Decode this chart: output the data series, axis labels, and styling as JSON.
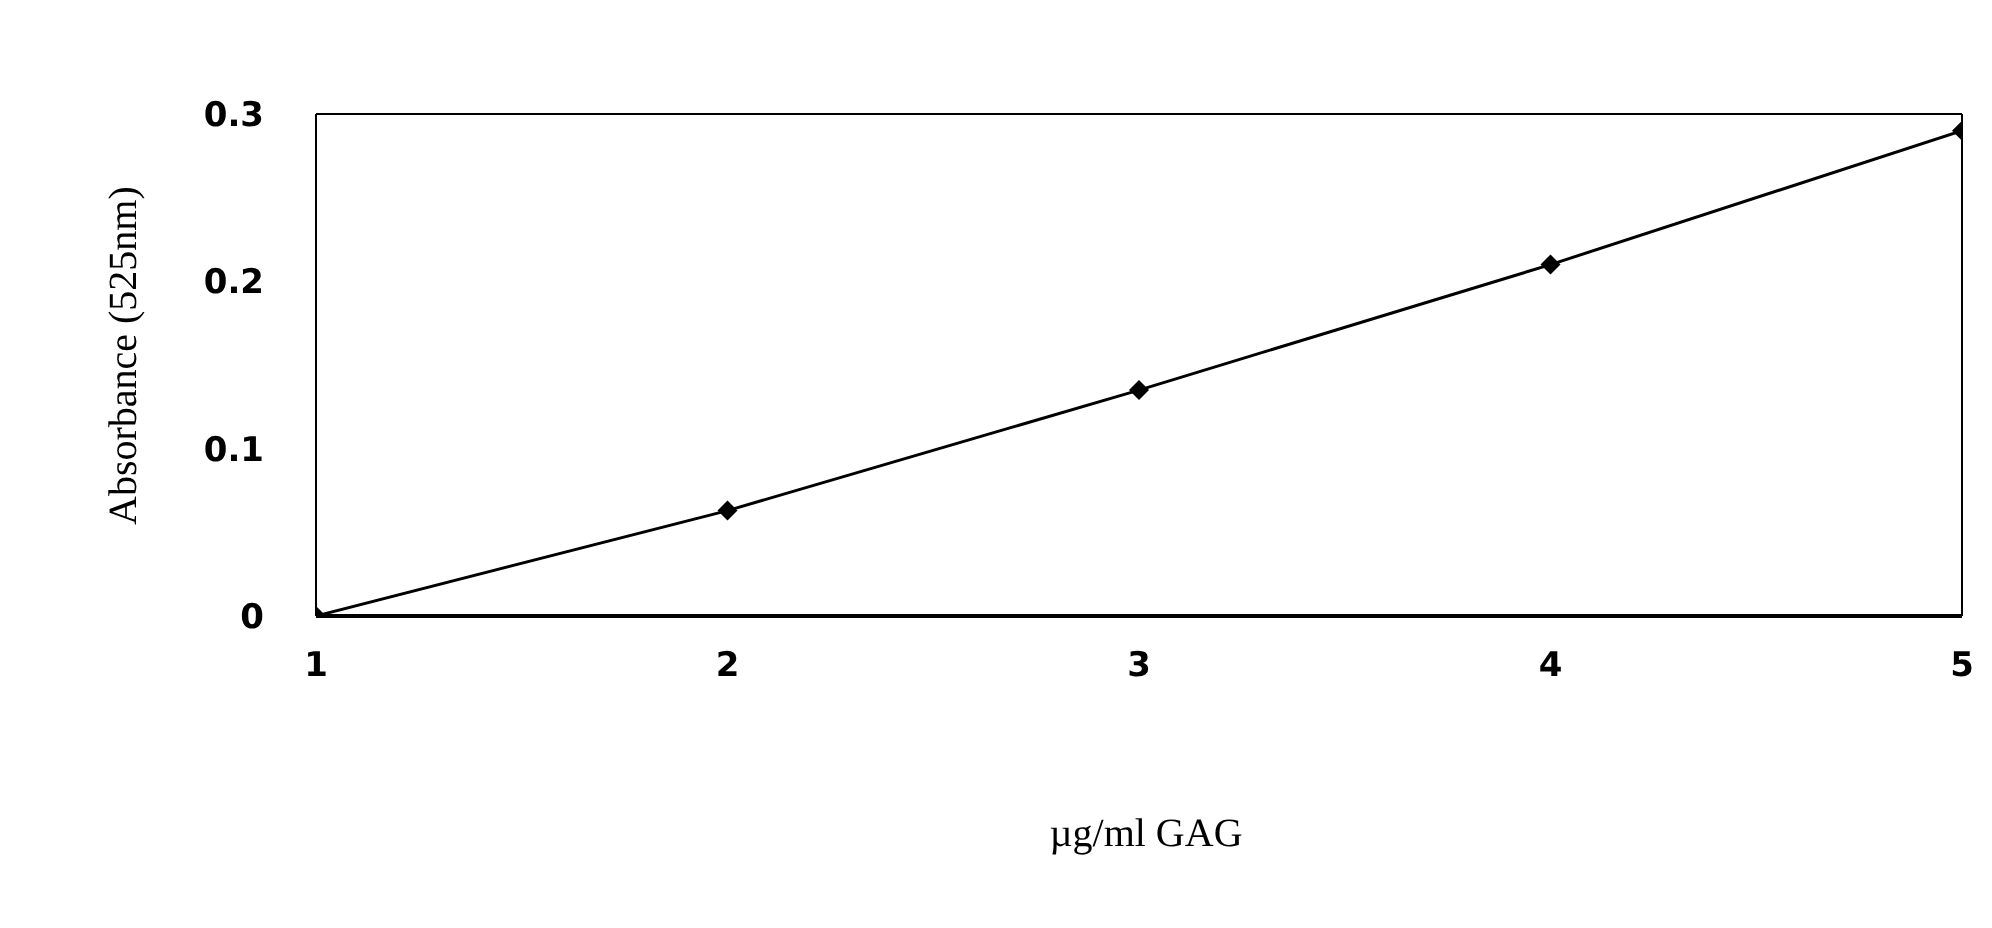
{
  "chart_data": {
    "type": "line",
    "xlabel": "µg/ml GAG",
    "ylabel": "Absorbance (525nm)",
    "x": [
      1,
      2,
      3,
      4,
      5
    ],
    "series": [
      {
        "color": "#000000",
        "values": [
          0,
          0.063,
          0.135,
          0.21,
          0.29
        ]
      }
    ],
    "xlim": [
      1,
      5
    ],
    "xticks": [
      1,
      2,
      3,
      4,
      5
    ],
    "ylim": [
      0,
      0.3
    ],
    "yticks": [
      0,
      0.1,
      0.2,
      0.3
    ],
    "grid": false,
    "legend": false,
    "marker": "diamond",
    "line_style": "solid"
  }
}
